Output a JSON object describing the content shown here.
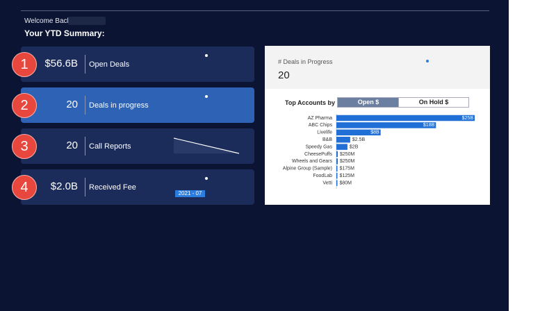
{
  "header": {
    "welcome": "Welcome Back,",
    "summary": "Your YTD Summary:"
  },
  "cards": [
    {
      "badge": "1",
      "value": "$56.6B",
      "label": "Open Deals"
    },
    {
      "badge": "2",
      "value": "20",
      "label": "Deals in progress"
    },
    {
      "badge": "3",
      "value": "20",
      "label": "Call Reports"
    },
    {
      "badge": "4",
      "value": "$2.0B",
      "label": "Received Fee",
      "tag": "2021 - 07"
    }
  ],
  "panel": {
    "title": "# Deals in Progress",
    "value": "20",
    "top_accounts": "Top Accounts by",
    "toggle": [
      "Open $",
      "On Hold $"
    ],
    "chart_data": {
      "type": "bar",
      "categories": [
        "AZ Pharma",
        "ABC Chips",
        "Livelife",
        "B&B",
        "Speedy Gas",
        "CheesePuffs",
        "Wheels and Gears",
        "Alpine Group (Sample)",
        "FoodLab",
        "Vetti"
      ],
      "values": [
        25,
        18,
        8,
        2.5,
        2,
        0.25,
        0.25,
        0.175,
        0.125,
        0.08
      ],
      "value_labels": [
        "$25B",
        "$18B",
        "$8B",
        "$2.5B",
        "$2B",
        "$250M",
        "$250M",
        "$175M",
        "$125M",
        "$80M"
      ],
      "color": "#1f6fd6"
    }
  }
}
